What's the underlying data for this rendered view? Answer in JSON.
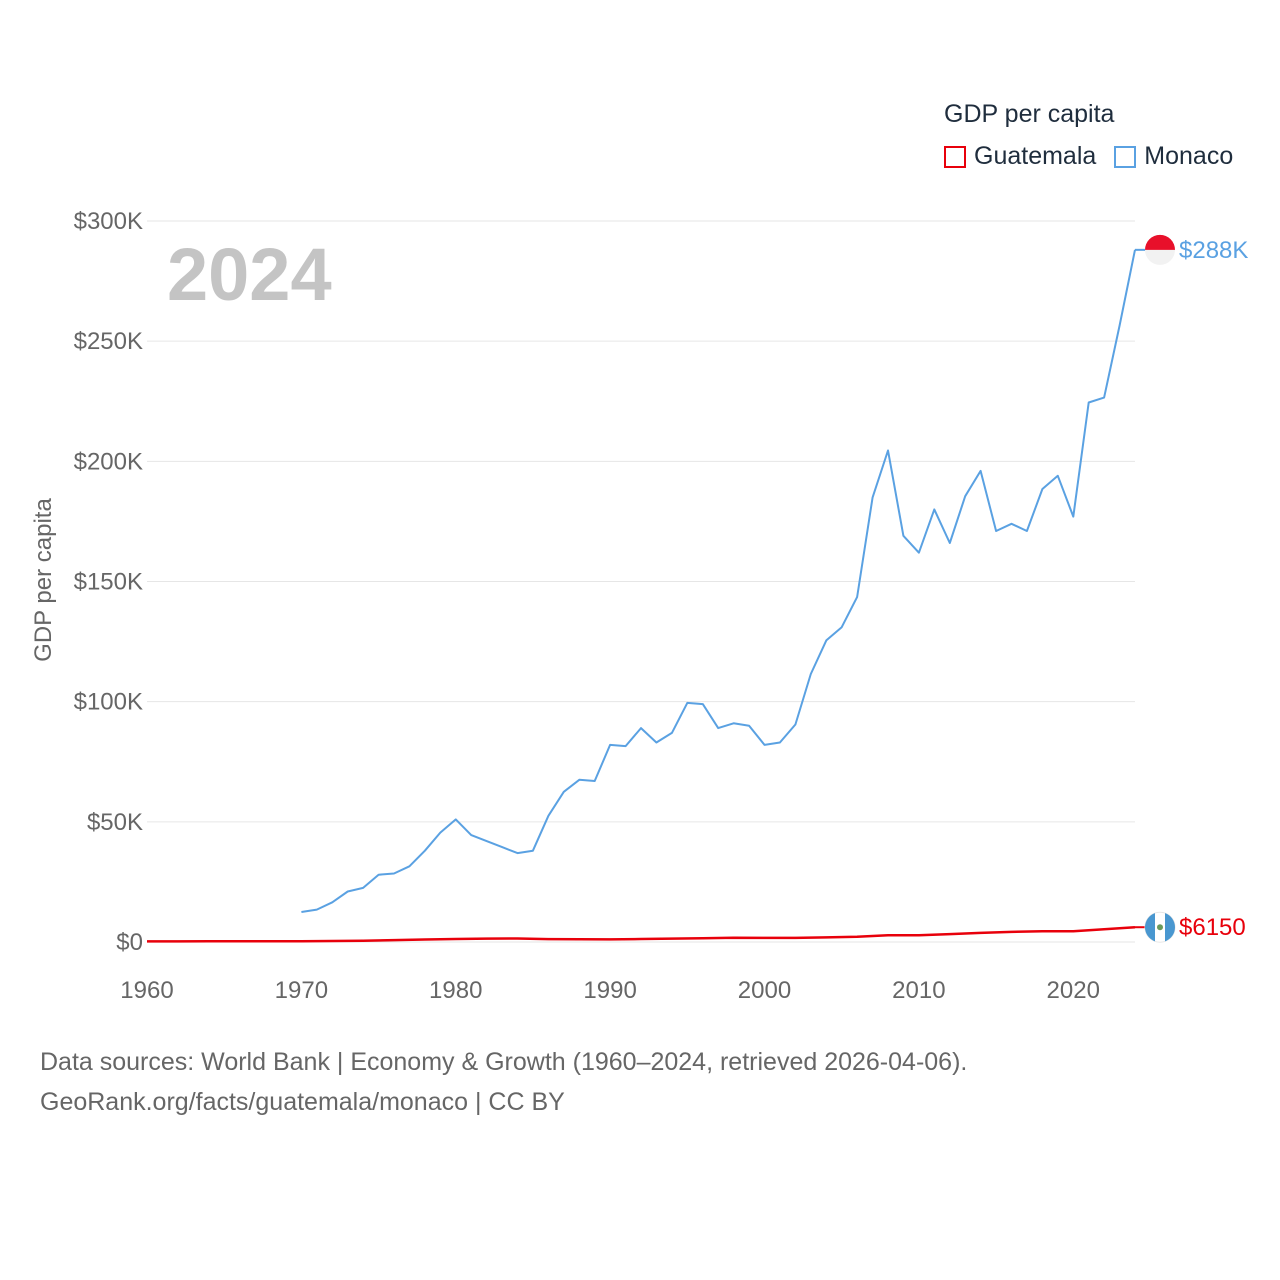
{
  "legend": {
    "title": "GDP per capita",
    "items": [
      {
        "label": "Guatemala",
        "color": "#e8000b"
      },
      {
        "label": "Monaco",
        "color": "#5aa1e2"
      }
    ]
  },
  "watermark_year": "2024",
  "footer": {
    "line1": "Data sources: World Bank | Economy & Growth (1960–2024, retrieved 2026-04-06).",
    "line2": "GeoRank.org/facts/guatemala/monaco | CC BY"
  },
  "chart_data": {
    "type": "line",
    "title": "GDP per capita",
    "xlabel": "",
    "ylabel": "GDP per capita",
    "xlim": [
      1960,
      2024
    ],
    "ylim": [
      0,
      300000
    ],
    "x_ticks": [
      1960,
      1970,
      1980,
      1990,
      2000,
      2010,
      2020
    ],
    "x_tick_labels": [
      "1960",
      "1970",
      "1980",
      "1990",
      "2000",
      "2010",
      "2020"
    ],
    "y_ticks": [
      0,
      50000,
      100000,
      150000,
      200000,
      250000,
      300000
    ],
    "y_tick_labels": [
      "$0",
      "$50K",
      "$100K",
      "$150K",
      "$200K",
      "$250K",
      "$300K"
    ],
    "grid": true,
    "series": [
      {
        "name": "Guatemala",
        "color": "#e8000b",
        "end_label": "$6150",
        "x": [
          1960,
          1962,
          1964,
          1966,
          1968,
          1970,
          1972,
          1974,
          1976,
          1978,
          1980,
          1982,
          1984,
          1986,
          1988,
          1990,
          1992,
          1994,
          1996,
          1998,
          2000,
          2002,
          2004,
          2006,
          2008,
          2010,
          2012,
          2014,
          2016,
          2018,
          2020,
          2022,
          2024
        ],
        "values": [
          250,
          260,
          280,
          300,
          320,
          350,
          400,
          550,
          800,
          1050,
          1250,
          1400,
          1450,
          1200,
          1150,
          1100,
          1250,
          1400,
          1600,
          1800,
          1700,
          1700,
          1900,
          2200,
          2800,
          2800,
          3300,
          3800,
          4200,
          4500,
          4500,
          5300,
          6150
        ]
      },
      {
        "name": "Monaco",
        "color": "#5aa1e2",
        "end_label": "$288K",
        "x": [
          1970,
          1971,
          1972,
          1973,
          1974,
          1975,
          1976,
          1977,
          1978,
          1979,
          1980,
          1981,
          1982,
          1983,
          1984,
          1985,
          1986,
          1987,
          1988,
          1989,
          1990,
          1991,
          1992,
          1993,
          1994,
          1995,
          1996,
          1997,
          1998,
          1999,
          2000,
          2001,
          2002,
          2003,
          2004,
          2005,
          2006,
          2007,
          2008,
          2009,
          2010,
          2011,
          2012,
          2013,
          2014,
          2015,
          2016,
          2017,
          2018,
          2019,
          2020,
          2021,
          2022,
          2023,
          2024
        ],
        "values": [
          12500,
          13500,
          16500,
          21000,
          22500,
          28000,
          28500,
          31500,
          38000,
          45500,
          51000,
          44500,
          42000,
          39500,
          37000,
          38000,
          52500,
          62500,
          67500,
          67000,
          82000,
          81500,
          89000,
          83000,
          87000,
          99500,
          99000,
          89000,
          91000,
          90000,
          82000,
          83000,
          90500,
          111500,
          125500,
          131000,
          143500,
          185000,
          204500,
          169000,
          162000,
          180000,
          166000,
          185500,
          196000,
          171000,
          174000,
          171000,
          188500,
          194000,
          177000,
          224500,
          226500,
          256500,
          288000
        ]
      }
    ]
  }
}
